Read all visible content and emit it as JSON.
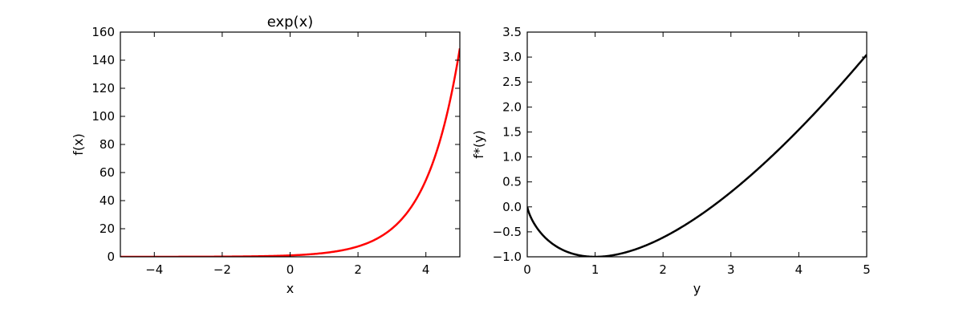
{
  "chart_data": [
    {
      "type": "line",
      "title": "exp(x)",
      "xlabel": "x",
      "ylabel": "f(x)",
      "xlim": [
        -5,
        5
      ],
      "ylim": [
        0,
        160
      ],
      "xticks": [
        -4,
        -2,
        0,
        2,
        4
      ],
      "yticks": [
        0,
        20,
        40,
        60,
        80,
        100,
        120,
        140,
        160
      ],
      "xtick_labels": [
        "−4",
        "−2",
        "0",
        "2",
        "4"
      ],
      "ytick_labels": [
        "0",
        "20",
        "40",
        "60",
        "80",
        "100",
        "120",
        "140",
        "160"
      ],
      "grid": false,
      "series": [
        {
          "color": "#ff0000",
          "function": "exp(x)",
          "x": [
            -5,
            -4,
            -3,
            -2,
            -1,
            0,
            0.5,
            1,
            1.5,
            2,
            2.5,
            3,
            3.25,
            3.5,
            3.75,
            4,
            4.25,
            4.5,
            4.75,
            5
          ],
          "y": [
            0.0067,
            0.0183,
            0.0498,
            0.1353,
            0.3679,
            1.0,
            1.6487,
            2.7183,
            4.4817,
            7.3891,
            12.1825,
            20.0855,
            25.7903,
            33.1155,
            42.5211,
            54.5982,
            70.1054,
            90.0171,
            115.5843,
            148.4132
          ]
        }
      ]
    },
    {
      "type": "line",
      "title": "",
      "xlabel": "y",
      "ylabel": "f*(y)",
      "xlim": [
        0,
        5
      ],
      "ylim": [
        -1.0,
        3.5
      ],
      "xticks": [
        0,
        1,
        2,
        3,
        4,
        5
      ],
      "yticks": [
        -1.0,
        -0.5,
        0.0,
        0.5,
        1.0,
        1.5,
        2.0,
        2.5,
        3.0,
        3.5
      ],
      "xtick_labels": [
        "0",
        "1",
        "2",
        "3",
        "4",
        "5"
      ],
      "ytick_labels": [
        "−1.0",
        "−0.5",
        "0.0",
        "0.5",
        "1.0",
        "1.5",
        "2.0",
        "2.5",
        "3.0",
        "3.5"
      ],
      "grid": false,
      "series": [
        {
          "color": "#000000",
          "function": "y*log(y) - y",
          "x": [
            0,
            0.05,
            0.1,
            0.2,
            0.3,
            0.4,
            0.5,
            0.6,
            0.8,
            1.0,
            1.25,
            1.5,
            1.75,
            2.0,
            2.5,
            3.0,
            3.5,
            4.0,
            4.5,
            5.0
          ],
          "y": [
            0,
            -0.1998,
            -0.3303,
            -0.5219,
            -0.6612,
            -0.7665,
            -0.8466,
            -0.9065,
            -0.9785,
            -1.0,
            -0.9711,
            -0.8918,
            -0.7707,
            -0.6137,
            -0.2093,
            0.2958,
            0.8847,
            1.5452,
            2.2683,
            3.0472
          ]
        }
      ]
    }
  ]
}
